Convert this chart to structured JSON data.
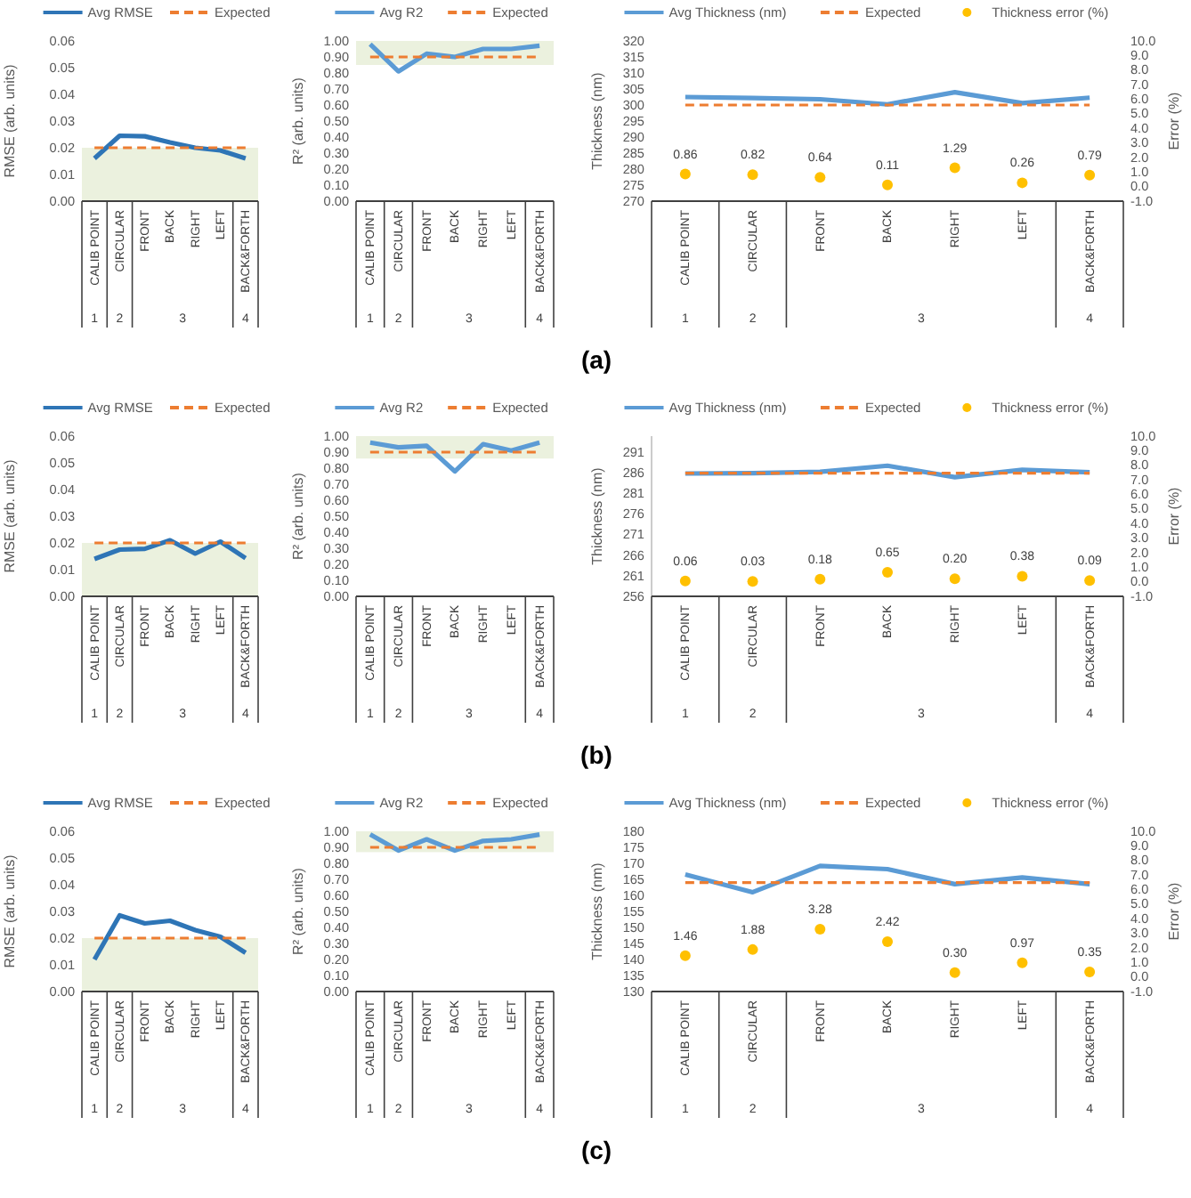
{
  "chart_data": [
    {
      "type": "line",
      "legend": "top",
      "ylabel": "RMSE (arb. units)",
      "categories": [
        "CALIB POINT",
        "CIRCULAR",
        "FRONT",
        "BACK",
        "RIGHT",
        "LEFT",
        "BACK&FORTH"
      ],
      "ylim": [
        0,
        0.06
      ],
      "yticks": [
        {
          "value": 0,
          "label": "0.00"
        },
        0.01,
        0.02,
        0.03,
        0.04,
        0.05,
        0.06
      ],
      "bands": [
        {
          "axis": "y",
          "from": 0,
          "to": 0.02,
          "color": "#ebf1de"
        }
      ],
      "series": [
        {
          "name": "Avg RMSE",
          "color": "#2e75b6",
          "values": [
            0.016,
            0.0245,
            0.0243,
            0.022,
            0.02,
            0.019,
            0.016
          ]
        },
        {
          "name": "Expected",
          "color": "#ed7d31",
          "line_style": "dashed",
          "values": [
            0.02,
            0.02,
            0.02,
            0.02,
            0.02,
            0.02,
            0.02
          ]
        }
      ],
      "annotations": [
        "1",
        "2",
        "3",
        "4"
      ]
    },
    {
      "type": "line",
      "legend": "top",
      "ylabel": "R² (arb. units)",
      "categories": [
        "CALIB POINT",
        "CIRCULAR",
        "FRONT",
        "BACK",
        "RIGHT",
        "LEFT",
        "BACK&FORTH"
      ],
      "ylim": [
        0,
        1
      ],
      "yticks": [
        {
          "value": 0,
          "label": "0.00"
        },
        {
          "value": 0.1,
          "label": "0.10"
        },
        {
          "value": 0.2,
          "label": "0.20"
        },
        {
          "value": 0.3,
          "label": "0.30"
        },
        {
          "value": 0.4,
          "label": "0.40"
        },
        {
          "value": 0.5,
          "label": "0.50"
        },
        {
          "value": 0.6,
          "label": "0.60"
        },
        {
          "value": 0.7,
          "label": "0.70"
        },
        {
          "value": 0.8,
          "label": "0.80"
        },
        {
          "value": 0.9,
          "label": "0.90"
        },
        {
          "value": 1,
          "label": "1.00"
        }
      ],
      "bands": [
        {
          "axis": "y",
          "from": 0.85,
          "to": 1,
          "color": "#ebf1de"
        }
      ],
      "series": [
        {
          "name": "Avg R2",
          "color": "#5b9bd5",
          "values": [
            0.98,
            0.81,
            0.92,
            0.9,
            0.95,
            0.95,
            0.97
          ]
        },
        {
          "name": "Expected",
          "color": "#ed7d31",
          "line_style": "dashed",
          "values": [
            0.9,
            0.9,
            0.9,
            0.9,
            0.9,
            0.9,
            0.9
          ]
        }
      ],
      "annotations": [
        "1",
        "2",
        "3",
        "4",
        "(a)"
      ]
    },
    {
      "type": "line",
      "legend": "top",
      "ylabel": "Thickness (nm)",
      "y2label": "Error (%)",
      "categories": [
        "CALIB POINT",
        "CIRCULAR",
        "FRONT",
        "BACK",
        "RIGHT",
        "LEFT",
        "BACK&FORTH"
      ],
      "ylim": [
        270,
        320
      ],
      "yticks": [
        270,
        275,
        280,
        285,
        290,
        295,
        300,
        305,
        310,
        315,
        320
      ],
      "y2lim": [
        -1,
        10
      ],
      "y2ticks": [
        {
          "value": -1,
          "label": "-1.0"
        },
        {
          "value": 0,
          "label": "0.0"
        },
        {
          "value": 1,
          "label": "1.0"
        },
        {
          "value": 2,
          "label": "2.0"
        },
        {
          "value": 3,
          "label": "3.0"
        },
        {
          "value": 4,
          "label": "4.0"
        },
        {
          "value": 5,
          "label": "5.0"
        },
        {
          "value": 6,
          "label": "6.0"
        },
        {
          "value": 7,
          "label": "7.0"
        },
        {
          "value": 8,
          "label": "8.0"
        },
        {
          "value": 9,
          "label": "9.0"
        },
        {
          "value": 10,
          "label": "10.0"
        }
      ],
      "series": [
        {
          "name": "Avg Thickness (nm)",
          "color": "#5b9bd5",
          "values": [
            302.5,
            302.2,
            301.8,
            300.2,
            304,
            300.6,
            302.3
          ]
        },
        {
          "name": "Expected",
          "color": "#ed7d31",
          "line_style": "dashed",
          "values": [
            300,
            300,
            300,
            300,
            300,
            300,
            300
          ]
        },
        {
          "name": "Thickness error (%)",
          "type": "scatter",
          "axis": "y2",
          "marker": "circle",
          "color": "#ffc000",
          "values": [
            0.86,
            0.82,
            0.64,
            0.11,
            1.29,
            0.26,
            0.79
          ],
          "value_labels": [
            "0.86",
            "0.82",
            "0.64",
            "0.11",
            "1.29",
            "0.26",
            "0.79"
          ]
        }
      ],
      "annotations": [
        "1",
        "2",
        "3",
        "4"
      ]
    },
    {
      "type": "line",
      "legend": "top",
      "ylabel": "RMSE (arb. units)",
      "categories": [
        "CALIB POINT",
        "CIRCULAR",
        "FRONT",
        "BACK",
        "RIGHT",
        "LEFT",
        "BACK&FORTH"
      ],
      "ylim": [
        0,
        0.06
      ],
      "yticks": [
        {
          "value": 0,
          "label": "0.00"
        },
        0.01,
        0.02,
        0.03,
        0.04,
        0.05,
        0.06
      ],
      "bands": [
        {
          "axis": "y",
          "from": 0,
          "to": 0.02,
          "color": "#ebf1de"
        }
      ],
      "series": [
        {
          "name": "Avg RMSE",
          "color": "#2e75b6",
          "values": [
            0.014,
            0.0175,
            0.0178,
            0.021,
            0.016,
            0.0205,
            0.0143
          ]
        },
        {
          "name": "Expected",
          "color": "#ed7d31",
          "line_style": "dashed",
          "values": [
            0.02,
            0.02,
            0.02,
            0.02,
            0.02,
            0.02,
            0.02
          ]
        }
      ],
      "annotations": [
        "1",
        "2",
        "3",
        "4"
      ]
    },
    {
      "type": "line",
      "legend": "top",
      "ylabel": "R² (arb. units)",
      "categories": [
        "CALIB POINT",
        "CIRCULAR",
        "FRONT",
        "BACK",
        "RIGHT",
        "LEFT",
        "BACK&FORTH"
      ],
      "ylim": [
        0,
        1
      ],
      "yticks": [
        {
          "value": 0,
          "label": "0.00"
        },
        {
          "value": 0.1,
          "label": "0.10"
        },
        {
          "value": 0.2,
          "label": "0.20"
        },
        {
          "value": 0.3,
          "label": "0.30"
        },
        {
          "value": 0.4,
          "label": "0.40"
        },
        {
          "value": 0.5,
          "label": "0.50"
        },
        {
          "value": 0.6,
          "label": "0.60"
        },
        {
          "value": 0.7,
          "label": "0.70"
        },
        {
          "value": 0.8,
          "label": "0.80"
        },
        {
          "value": 0.9,
          "label": "0.90"
        },
        {
          "value": 1,
          "label": "1.00"
        }
      ],
      "bands": [
        {
          "axis": "y",
          "from": 0.86,
          "to": 1,
          "color": "#ebf1de"
        }
      ],
      "series": [
        {
          "name": "Avg R2",
          "color": "#5b9bd5",
          "values": [
            0.96,
            0.93,
            0.94,
            0.78,
            0.95,
            0.91,
            0.96
          ]
        },
        {
          "name": "Expected",
          "color": "#ed7d31",
          "line_style": "dashed",
          "values": [
            0.9,
            0.9,
            0.9,
            0.9,
            0.9,
            0.9,
            0.9
          ]
        }
      ],
      "annotations": [
        "1",
        "2",
        "3",
        "4",
        "(b)"
      ]
    },
    {
      "type": "line",
      "legend": "top",
      "ylabel": "Thickness (nm)",
      "y2label": "Error (%)",
      "categories": [
        "CALIB POINT",
        "CIRCULAR",
        "FRONT",
        "BACK",
        "RIGHT",
        "LEFT",
        "BACK&FORTH"
      ],
      "ylim": [
        256,
        295
      ],
      "yticks": [
        256,
        261,
        266,
        271,
        276,
        281,
        286,
        291
      ],
      "y2lim": [
        -1,
        10
      ],
      "y2ticks": [
        {
          "value": -1,
          "label": "-1.0"
        },
        {
          "value": 0,
          "label": "0.0"
        },
        {
          "value": 1,
          "label": "1.0"
        },
        {
          "value": 2,
          "label": "2.0"
        },
        {
          "value": 3,
          "label": "3.0"
        },
        {
          "value": 4,
          "label": "4.0"
        },
        {
          "value": 5,
          "label": "5.0"
        },
        {
          "value": 6,
          "label": "6.0"
        },
        {
          "value": 7,
          "label": "7.0"
        },
        {
          "value": 8,
          "label": "8.0"
        },
        {
          "value": 9,
          "label": "9.0"
        },
        {
          "value": 10,
          "label": "10.0"
        }
      ],
      "series": [
        {
          "name": "Avg Thickness (nm)",
          "color": "#5b9bd5",
          "values": [
            285.9,
            286,
            286.3,
            287.8,
            285,
            286.8,
            286.2
          ]
        },
        {
          "name": "Expected",
          "color": "#ed7d31",
          "line_style": "dashed",
          "values": [
            286,
            286,
            286,
            286,
            286,
            286,
            286
          ]
        },
        {
          "name": "Thickness error (%)",
          "type": "scatter",
          "axis": "y2",
          "marker": "circle",
          "color": "#ffc000",
          "values": [
            0.06,
            0.03,
            0.18,
            0.65,
            0.2,
            0.38,
            0.09
          ],
          "value_labels": [
            "0.06",
            "0.03",
            "0.18",
            "0.65",
            "0.20",
            "0.38",
            "0.09"
          ]
        }
      ],
      "annotations": [
        "1",
        "2",
        "3",
        "4"
      ]
    },
    {
      "type": "line",
      "legend": "top",
      "ylabel": "RMSE (arb. units)",
      "categories": [
        "CALIB POINT",
        "CIRCULAR",
        "FRONT",
        "BACK",
        "RIGHT",
        "LEFT",
        "BACK&FORTH"
      ],
      "ylim": [
        0,
        0.06
      ],
      "yticks": [
        {
          "value": 0,
          "label": "0.00"
        },
        0.01,
        0.02,
        0.03,
        0.04,
        0.05,
        0.06
      ],
      "bands": [
        {
          "axis": "y",
          "from": 0,
          "to": 0.02,
          "color": "#ebf1de"
        }
      ],
      "series": [
        {
          "name": "Avg RMSE",
          "color": "#2e75b6",
          "values": [
            0.012,
            0.0285,
            0.0255,
            0.0265,
            0.023,
            0.0205,
            0.0145
          ]
        },
        {
          "name": "Expected",
          "color": "#ed7d31",
          "line_style": "dashed",
          "values": [
            0.02,
            0.02,
            0.02,
            0.02,
            0.02,
            0.02,
            0.02
          ]
        }
      ],
      "annotations": [
        "1",
        "2",
        "3",
        "4"
      ]
    },
    {
      "type": "line",
      "legend": "top",
      "ylabel": "R² (arb. units)",
      "categories": [
        "CALIB POINT",
        "CIRCULAR",
        "FRONT",
        "BACK",
        "RIGHT",
        "LEFT",
        "BACK&FORTH"
      ],
      "ylim": [
        0,
        1
      ],
      "yticks": [
        {
          "value": 0,
          "label": "0.00"
        },
        {
          "value": 0.1,
          "label": "0.10"
        },
        {
          "value": 0.2,
          "label": "0.20"
        },
        {
          "value": 0.3,
          "label": "0.30"
        },
        {
          "value": 0.4,
          "label": "0.40"
        },
        {
          "value": 0.5,
          "label": "0.50"
        },
        {
          "value": 0.6,
          "label": "0.60"
        },
        {
          "value": 0.7,
          "label": "0.70"
        },
        {
          "value": 0.8,
          "label": "0.80"
        },
        {
          "value": 0.9,
          "label": "0.90"
        },
        {
          "value": 1,
          "label": "1.00"
        }
      ],
      "bands": [
        {
          "axis": "y",
          "from": 0.87,
          "to": 1,
          "color": "#ebf1de"
        }
      ],
      "series": [
        {
          "name": "Avg R2",
          "color": "#5b9bd5",
          "values": [
            0.98,
            0.88,
            0.95,
            0.88,
            0.94,
            0.95,
            0.98
          ]
        },
        {
          "name": "Expected",
          "color": "#ed7d31",
          "line_style": "dashed",
          "values": [
            0.9,
            0.9,
            0.9,
            0.9,
            0.9,
            0.9,
            0.9
          ]
        }
      ],
      "annotations": [
        "1",
        "2",
        "3",
        "4",
        "(c)"
      ]
    },
    {
      "type": "line",
      "legend": "top",
      "ylabel": "Thickness (nm)",
      "y2label": "Error (%)",
      "categories": [
        "CALIB POINT",
        "CIRCULAR",
        "FRONT",
        "BACK",
        "RIGHT",
        "LEFT",
        "BACK&FORTH"
      ],
      "ylim": [
        130,
        180
      ],
      "yticks": [
        130,
        135,
        140,
        145,
        150,
        155,
        160,
        165,
        170,
        175,
        180
      ],
      "y2lim": [
        -1,
        10
      ],
      "y2ticks": [
        {
          "value": -1,
          "label": "-1.0"
        },
        {
          "value": 0,
          "label": "0.0"
        },
        {
          "value": 1,
          "label": "1.0"
        },
        {
          "value": 2,
          "label": "2.0"
        },
        {
          "value": 3,
          "label": "3.0"
        },
        {
          "value": 4,
          "label": "4.0"
        },
        {
          "value": 5,
          "label": "5.0"
        },
        {
          "value": 6,
          "label": "6.0"
        },
        {
          "value": 7,
          "label": "7.0"
        },
        {
          "value": 8,
          "label": "8.0"
        },
        {
          "value": 9,
          "label": "9.0"
        },
        {
          "value": 10,
          "label": "10.0"
        }
      ],
      "series": [
        {
          "name": "Avg Thickness (nm)",
          "color": "#5b9bd5",
          "values": [
            166.5,
            161,
            169.2,
            168.2,
            163.5,
            165.6,
            163.5
          ]
        },
        {
          "name": "Expected",
          "color": "#ed7d31",
          "line_style": "dashed",
          "values": [
            164,
            164,
            164,
            164,
            164,
            164,
            164
          ]
        },
        {
          "name": "Thickness error (%)",
          "type": "scatter",
          "axis": "y2",
          "marker": "circle",
          "color": "#ffc000",
          "values": [
            1.46,
            1.88,
            3.28,
            2.42,
            0.3,
            0.97,
            0.35
          ],
          "value_labels": [
            "1.46",
            "1.88",
            "3.28",
            "2.42",
            "0.30",
            "0.97",
            "0.35"
          ]
        }
      ],
      "annotations": [
        "1",
        "2",
        "3",
        "4"
      ]
    }
  ]
}
